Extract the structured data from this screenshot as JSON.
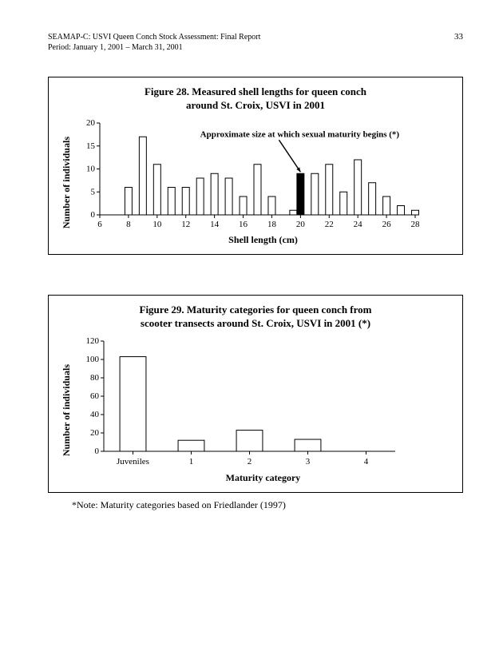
{
  "header": {
    "line1": "SEAMAP-C: USVI Queen Conch Stock Assessment: Final Report",
    "line2": "Period: January 1, 2001 – March 31, 2001",
    "page_num": "33"
  },
  "chart28": {
    "type": "bar",
    "title": "Figure 28. Measured shell lengths for queen conch\naround St. Croix, USVI in 2001",
    "ylabel": "Number of individuals",
    "xlabel": "Shell length (cm)",
    "ylim": [
      0,
      20
    ],
    "ytick_step": 5,
    "xlim": [
      6,
      28
    ],
    "xtick_step": 2,
    "categories": [
      8,
      8.5,
      9,
      9.5,
      10,
      10.5,
      11,
      12,
      12.5,
      13,
      13.5,
      14,
      14.5,
      15,
      16,
      16.5,
      17,
      18,
      18.5,
      19.5,
      20,
      20.5,
      21,
      21.5,
      22,
      23,
      24,
      24.5,
      25,
      25.5,
      26,
      27,
      27.5,
      28
    ],
    "values": [
      6,
      0,
      17,
      0,
      11,
      0,
      6,
      6,
      0,
      8,
      0,
      9,
      0,
      8,
      4,
      0,
      11,
      4,
      0,
      1,
      9,
      0,
      9,
      0,
      11,
      5,
      12,
      0,
      7,
      0,
      4,
      2,
      0,
      1
    ],
    "highlight_index": 20,
    "bar_color": "#ffffff",
    "highlight_color": "#000000",
    "stroke_color": "#000000",
    "background_color": "#ffffff",
    "bar_width": 0.5,
    "annotation": "Approximate size at which sexual maturity begins (*)",
    "annotation_fontsize": 11
  },
  "chart29": {
    "type": "bar",
    "title": "Figure 29. Maturity categories for queen conch from\nscooter transects around St. Croix, USVI in 2001 (*)",
    "ylabel": "Number of individuals",
    "xlabel": "Maturity category",
    "ylim": [
      0,
      120
    ],
    "ytick_step": 20,
    "categories": [
      "Juveniles",
      "1",
      "2",
      "3",
      "4"
    ],
    "values": [
      103,
      12,
      23,
      13,
      0
    ],
    "bar_color": "#ffffff",
    "stroke_color": "#000000",
    "background_color": "#ffffff",
    "bar_width": 0.45
  },
  "note": "*Note: Maturity categories based on Friedlander (1997)"
}
